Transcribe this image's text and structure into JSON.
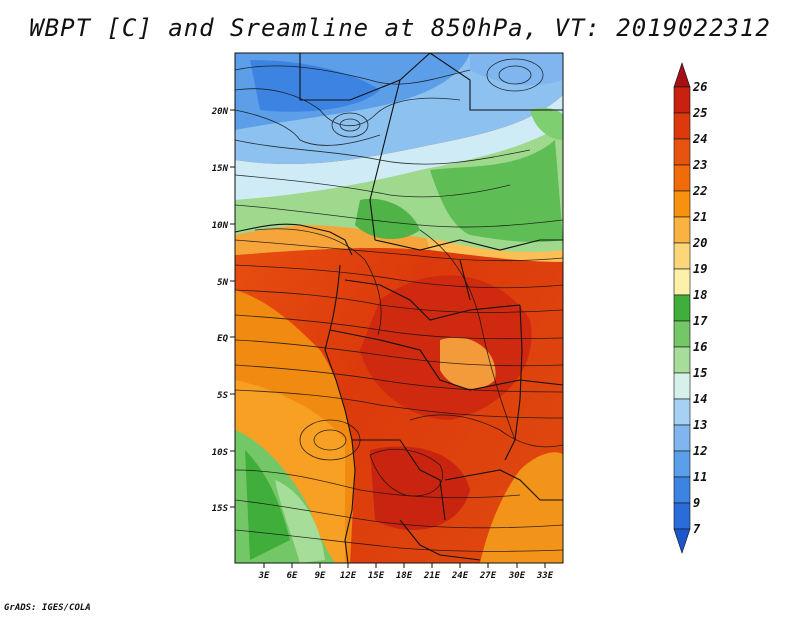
{
  "title": "WBPT [C] and Sreamline at 850hPa, VT: 2019022312",
  "credit": "GrADS: IGES/COLA",
  "map": {
    "lat_labels": [
      "20N",
      "15N",
      "10N",
      "5N",
      "EQ",
      "5S",
      "10S",
      "15S"
    ],
    "lon_labels": [
      "3E",
      "6E",
      "9E",
      "12E",
      "15E",
      "18E",
      "21E",
      "24E",
      "27E",
      "30E",
      "33E"
    ]
  },
  "colorbar": {
    "levels": [
      "26",
      "25",
      "24",
      "23",
      "22",
      "21",
      "20",
      "19",
      "18",
      "17",
      "16",
      "15",
      "14",
      "13",
      "12",
      "11",
      "9",
      "7"
    ],
    "colors": [
      "#a50f15",
      "#c8210f",
      "#dc3a0c",
      "#e85410",
      "#f26b0a",
      "#f8910d",
      "#fab340",
      "#fcd77a",
      "#fdf0a8",
      "#3fae3a",
      "#74c766",
      "#a6dd98",
      "#d6f0ea",
      "#a6d0f4",
      "#7fb6ef",
      "#5b9fea",
      "#3d84e2",
      "#2a6cd9",
      "#1b56cc"
    ]
  }
}
